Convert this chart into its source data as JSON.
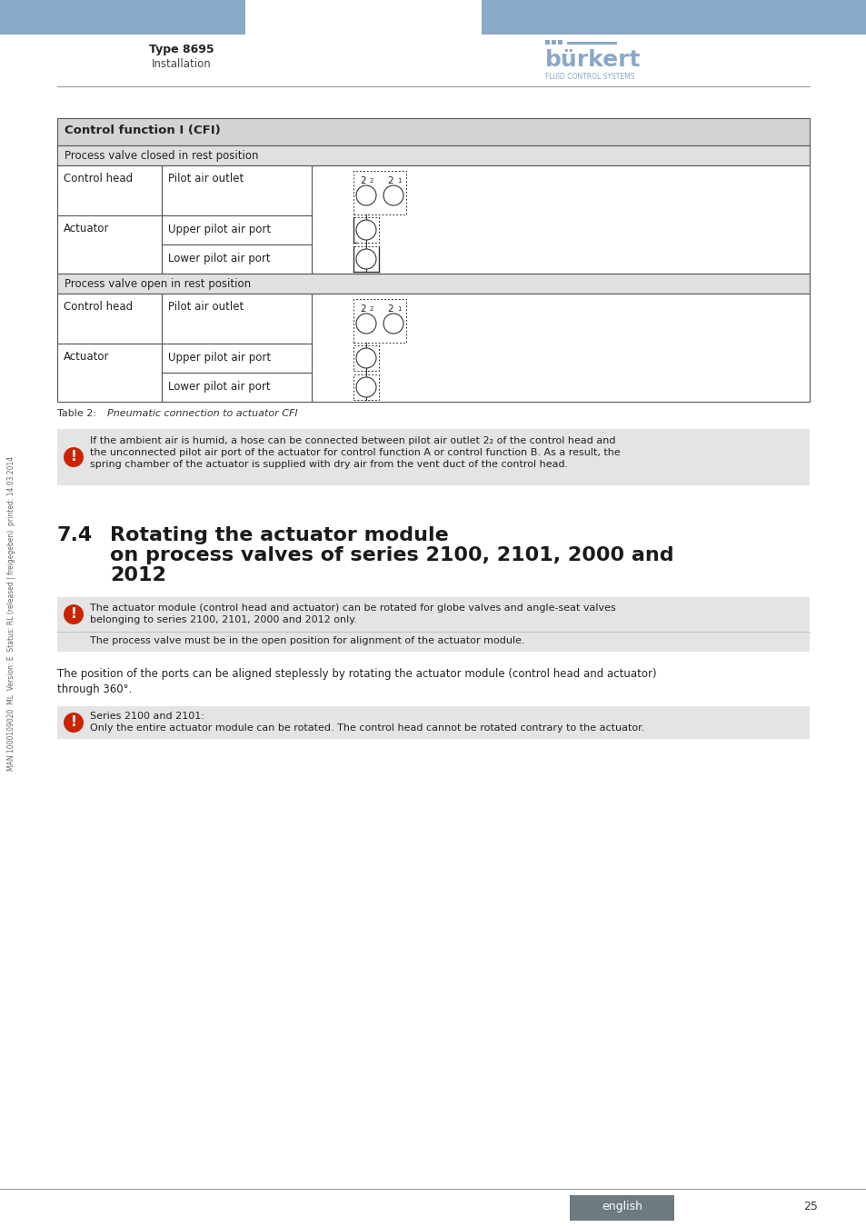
{
  "page_bg": "#ffffff",
  "header_blue": "#8aa8c8",
  "header_left_text": "Type 8695",
  "header_sub_text": "Installation",
  "burkert_color": "#8aa8c8",
  "footer_bg": "#6d7a80",
  "footer_text": "english",
  "footer_text_color": "#ffffff",
  "page_number": "25",
  "side_text": "MAN 1000109020  ML  Version: E  Status: RL (released | freigegeben)  printed: 14.03.2014",
  "table_header_bg": "#d4d4d4",
  "table_section_bg": "#e0e0e0",
  "table_border": "#555555",
  "table_title": "Control function I (CFI)",
  "section1_title": "Process valve closed in rest position",
  "section2_title": "Process valve open in rest position",
  "table_caption": "Table 2:        Pneumatic connection to actuator CFI",
  "note1_text": "If the ambient air is humid, a hose can be connected between pilot air outlet 2₂ of the control head and\nthe unconnected pilot air port of the actuator for control function A or control function B. As a result, the\nspring chamber of the actuator is supplied with dry air from the vent duct of the control head.",
  "note_bg": "#e4e4e4",
  "note_icon_color": "#cc2200",
  "note2_text": "The actuator module (control head and actuator) can be rotated for globe valves and angle-seat valves\nbelonging to series 2100, 2101, 2000 and 2012 only.",
  "note3_text": "The process valve must be in the open position for alignment of the actuator module.",
  "body_text1": "The position of the ports can be aligned steplessly by rotating the actuator module (control head and actuator)\nthrough 360°.",
  "note4_text": "Series 2100 and 2101:\nOnly the entire actuator module can be rotated. The control head cannot be rotated contrary to the actuator.",
  "line_color": "#999999"
}
